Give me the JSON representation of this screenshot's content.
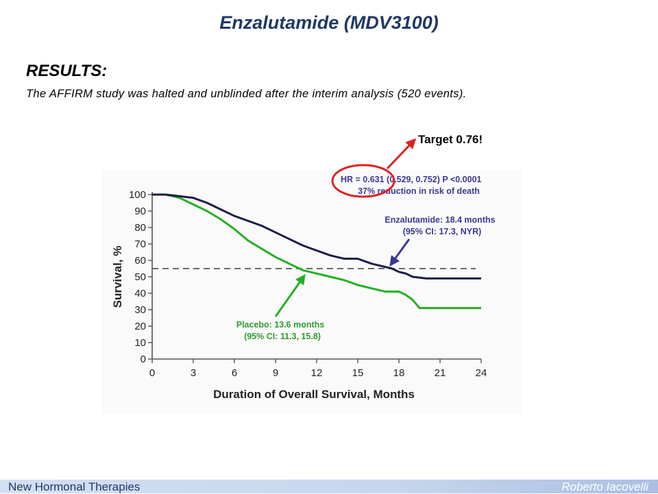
{
  "slide": {
    "title": "Enzalutamide (MDV3100)",
    "heading": "RESULTS:",
    "text": "The AFFIRM study was halted and unblinded after the interim analysis (520 events).",
    "target_label": "Target 0.76!"
  },
  "footer": {
    "left": "New Hormonal Therapies",
    "right": "Roberto Iacovelli"
  },
  "colors": {
    "title": "#1f3864",
    "enzalutamide": "#1b1b4a",
    "placebo": "#22b022",
    "annotation_text": "#3a3896",
    "placebo_text": "#2e9b2e",
    "highlight": "#e02020"
  },
  "chart_data": {
    "type": "line",
    "xlabel": "Duration of Overall Survival, Months",
    "ylabel": "Survival, %",
    "xlim": [
      0,
      24
    ],
    "ylim": [
      0,
      100
    ],
    "xticks": [
      0,
      3,
      6,
      9,
      12,
      15,
      18,
      21,
      24
    ],
    "yticks": [
      0,
      10,
      20,
      30,
      40,
      50,
      60,
      70,
      80,
      90,
      100
    ],
    "grid": false,
    "series": [
      {
        "key": "enzalutamide",
        "x": [
          0,
          1,
          2,
          3,
          4,
          5,
          6,
          7,
          8,
          9,
          10,
          11,
          12,
          13,
          14,
          15,
          16,
          17,
          17.5,
          18,
          18.5,
          19,
          20,
          21,
          22,
          23,
          24
        ],
        "y": [
          100,
          100,
          99,
          98,
          95,
          91,
          87,
          84,
          81,
          77,
          73,
          69,
          66,
          63,
          61,
          61,
          58,
          56,
          55,
          53,
          52,
          50,
          49,
          49,
          49,
          49,
          49
        ]
      },
      {
        "key": "placebo",
        "x": [
          0,
          1,
          2,
          3,
          4,
          5,
          6,
          7,
          8,
          9,
          10,
          11,
          12,
          13,
          14,
          15,
          16,
          17,
          18,
          18.5,
          19,
          19.5,
          20,
          21,
          22,
          23,
          24
        ],
        "y": [
          100,
          100,
          98,
          94,
          90,
          85,
          79,
          72,
          67,
          62,
          58,
          54,
          52,
          50,
          48,
          45,
          43,
          41,
          41,
          39,
          36,
          31,
          31,
          31,
          31,
          31,
          31
        ]
      }
    ],
    "reference_line": {
      "y": 55
    },
    "annotations": [
      {
        "key": "hr",
        "lines": [
          "HR = 0.631 (0.529, 0.752) P <0.0001",
          "37% reduction in risk of death"
        ]
      },
      {
        "key": "enz",
        "lines": [
          "Enzalutamide: 18.4 months",
          "(95% CI: 17.3, NYR)"
        ],
        "point": [
          17.3,
          54
        ]
      },
      {
        "key": "pla",
        "lines": [
          "Placebo: 13.6 months",
          "(95% CI: 11.3, 15.8)"
        ],
        "point": [
          11.3,
          54
        ]
      }
    ]
  }
}
